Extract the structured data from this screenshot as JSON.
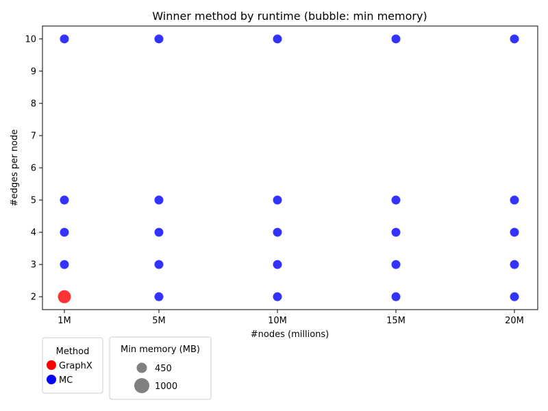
{
  "chart_data": {
    "type": "scatter",
    "title": "Winner method by runtime (bubble: min memory)",
    "xlabel": "#nodes (millions)",
    "ylabel": "#edges per node",
    "x_categories": [
      "1M",
      "5M",
      "10M",
      "15M",
      "20M"
    ],
    "y_ticks": [
      "2",
      "3",
      "4",
      "5",
      "6",
      "7",
      "8",
      "9",
      "10"
    ],
    "ylim": [
      1.6,
      10.4
    ],
    "grid": false,
    "points": [
      {
        "x": "1M",
        "y": 2,
        "method": "GraphX",
        "size": "large"
      },
      {
        "x": "1M",
        "y": 3,
        "method": "MC",
        "size": "small"
      },
      {
        "x": "1M",
        "y": 4,
        "method": "MC",
        "size": "small"
      },
      {
        "x": "1M",
        "y": 5,
        "method": "MC",
        "size": "small"
      },
      {
        "x": "1M",
        "y": 10,
        "method": "MC",
        "size": "small"
      },
      {
        "x": "5M",
        "y": 2,
        "method": "MC",
        "size": "small"
      },
      {
        "x": "5M",
        "y": 3,
        "method": "MC",
        "size": "small"
      },
      {
        "x": "5M",
        "y": 4,
        "method": "MC",
        "size": "small"
      },
      {
        "x": "5M",
        "y": 5,
        "method": "MC",
        "size": "small"
      },
      {
        "x": "5M",
        "y": 10,
        "method": "MC",
        "size": "small"
      },
      {
        "x": "10M",
        "y": 2,
        "method": "MC",
        "size": "small"
      },
      {
        "x": "10M",
        "y": 3,
        "method": "MC",
        "size": "small"
      },
      {
        "x": "10M",
        "y": 4,
        "method": "MC",
        "size": "small"
      },
      {
        "x": "10M",
        "y": 5,
        "method": "MC",
        "size": "small"
      },
      {
        "x": "10M",
        "y": 10,
        "method": "MC",
        "size": "small"
      },
      {
        "x": "15M",
        "y": 2,
        "method": "MC",
        "size": "small"
      },
      {
        "x": "15M",
        "y": 3,
        "method": "MC",
        "size": "small"
      },
      {
        "x": "15M",
        "y": 4,
        "method": "MC",
        "size": "small"
      },
      {
        "x": "15M",
        "y": 5,
        "method": "MC",
        "size": "small"
      },
      {
        "x": "15M",
        "y": 10,
        "method": "MC",
        "size": "small"
      },
      {
        "x": "20M",
        "y": 2,
        "method": "MC",
        "size": "small"
      },
      {
        "x": "20M",
        "y": 3,
        "method": "MC",
        "size": "small"
      },
      {
        "x": "20M",
        "y": 4,
        "method": "MC",
        "size": "small"
      },
      {
        "x": "20M",
        "y": 5,
        "method": "MC",
        "size": "small"
      },
      {
        "x": "20M",
        "y": 10,
        "method": "MC",
        "size": "small"
      }
    ],
    "legend_method": {
      "title": "Method",
      "placement": "bottom-left",
      "entries": [
        {
          "label": "GraphX",
          "color": "#ff0000"
        },
        {
          "label": "MC",
          "color": "#0000ff"
        }
      ]
    },
    "legend_memory": {
      "title": "Min memory (MB)",
      "placement": "bottom-left",
      "entries": [
        {
          "label": "450",
          "size": "small"
        },
        {
          "label": "1000",
          "size": "large"
        }
      ],
      "color": "#808080"
    },
    "colors": {
      "GraphX": "#ff0000",
      "MC": "#0000ff"
    }
  }
}
